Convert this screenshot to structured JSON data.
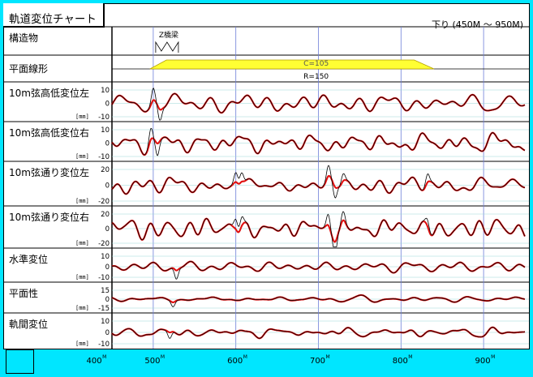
{
  "title": "軌道変位チャート",
  "direction": "下り (450M ～ 950M)",
  "structure": {
    "label": "構造物",
    "bridge_label": "Z橋梁"
  },
  "alignment": {
    "label": "平面線形",
    "cant_label": "C=105",
    "radius_label": "R=150"
  },
  "colors": {
    "frame": "#00e6ff",
    "measured": "#000000",
    "corrected": "#e01010",
    "grid_major": "#6e7fd8",
    "grid_minor": "#9ad8d8",
    "curve_fill": "#ffff33",
    "curve_stroke": "#b5a000"
  },
  "chart_data": {
    "type": "line",
    "x_unit": "M",
    "xlim": [
      450,
      950
    ],
    "x_ticks": [
      400,
      500,
      600,
      700,
      800,
      900
    ],
    "x_tick_labels": [
      "400M",
      "500M",
      "600M",
      "700M",
      "800M",
      "900M"
    ],
    "unit_label": "[mm]",
    "series_legend": [
      "measured (black)",
      "corrected (red)"
    ],
    "panels": [
      {
        "name": "10m弦高低変位左",
        "ylim": [
          -10,
          10
        ],
        "ticks": [
          "10",
          "0",
          "-10"
        ],
        "amp": 8,
        "seed": 11,
        "spikes": [
          {
            "x": 500,
            "a": 12
          },
          {
            "x": 508,
            "a": -11
          }
        ]
      },
      {
        "name": "10m弦高低変位右",
        "ylim": [
          -10,
          10
        ],
        "ticks": [
          "10",
          "0",
          "-10"
        ],
        "amp": 8,
        "seed": 23,
        "spikes": [
          {
            "x": 497,
            "a": 11
          },
          {
            "x": 505,
            "a": -12
          }
        ]
      },
      {
        "name": "10m弦通り変位左",
        "ylim": [
          -20,
          20
        ],
        "ticks": [
          "20",
          "0",
          "-20"
        ],
        "amp": 12,
        "seed": 37,
        "spikes": [
          {
            "x": 600,
            "a": 16
          },
          {
            "x": 607,
            "a": 15
          },
          {
            "x": 712,
            "a": 18
          },
          {
            "x": 720,
            "a": -18
          },
          {
            "x": 730,
            "a": 12
          },
          {
            "x": 832,
            "a": 14
          }
        ]
      },
      {
        "name": "10m弦通り変位右",
        "ylim": [
          -20,
          20
        ],
        "ticks": [
          "20",
          "0",
          "-20"
        ],
        "amp": 12,
        "seed": 41,
        "spikes": [
          {
            "x": 600,
            "a": 18
          },
          {
            "x": 607,
            "a": 16
          },
          {
            "x": 712,
            "a": 20
          },
          {
            "x": 720,
            "a": -22
          },
          {
            "x": 730,
            "a": 16
          },
          {
            "x": 832,
            "a": 12
          }
        ]
      },
      {
        "name": "水準変位",
        "ylim": [
          -10,
          10
        ],
        "ticks": [
          "10",
          "0",
          "-10"
        ],
        "amp": 5,
        "seed": 53,
        "spikes": [
          {
            "x": 528,
            "a": -11
          }
        ]
      },
      {
        "name": "平面性",
        "ylim": [
          -15,
          15
        ],
        "ticks": [
          "15",
          "0",
          "-15"
        ],
        "amp": 5,
        "seed": 67,
        "spikes": [
          {
            "x": 524,
            "a": -10
          }
        ]
      },
      {
        "name": "軌間変位",
        "ylim": [
          -10,
          10
        ],
        "ticks": [
          "10",
          "0",
          "-10"
        ],
        "amp": 4,
        "seed": 79,
        "spikes": [
          {
            "x": 520,
            "a": -7
          }
        ]
      }
    ]
  }
}
